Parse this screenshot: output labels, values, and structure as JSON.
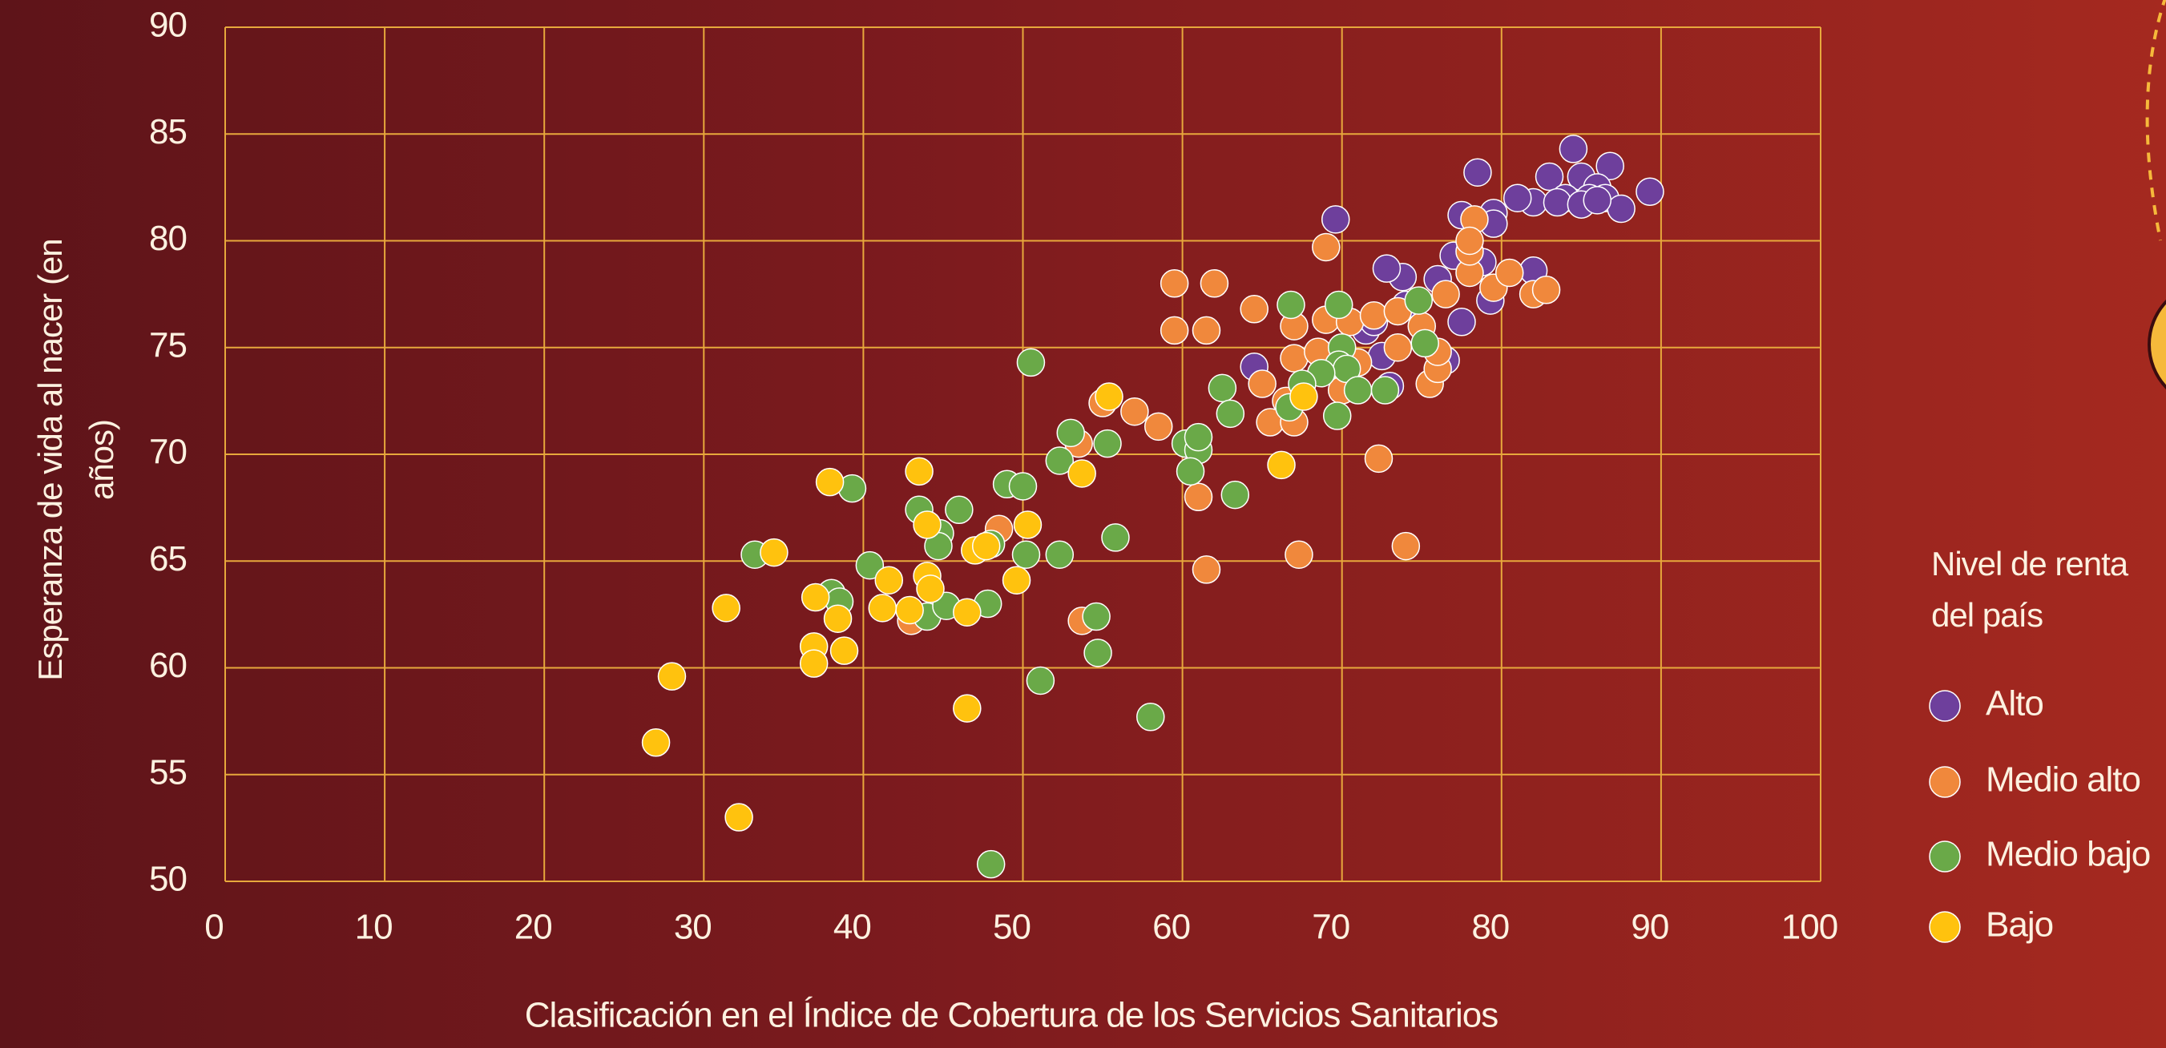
{
  "chart_data": {
    "type": "scatter",
    "x_label": "Clasificación en el Índice de Cobertura de los Servicios Sanitarios",
    "y_label": "Esperanza de vida al nacer (en años)",
    "legend_title": "Nivel de renta del país",
    "legend_position": "right",
    "grid": true,
    "xlim": [
      0,
      100
    ],
    "xticks": [
      0,
      10,
      20,
      30,
      40,
      50,
      60,
      70,
      80,
      90,
      100
    ],
    "ylim": [
      50,
      90
    ],
    "yticks": [
      50,
      55,
      60,
      65,
      70,
      75,
      80,
      85,
      90
    ],
    "series": [
      {
        "name": "Alto",
        "color": "#6e3f9c",
        "x": [
          84.5,
          86.8,
          78.5,
          83,
          85,
          86,
          84,
          82,
          83.5,
          85.5,
          86.5,
          87.5,
          89.3,
          81,
          79.5,
          79.5,
          69.6,
          77.5,
          77,
          78.8,
          76,
          73.8,
          72.8,
          82,
          79.3,
          77.5,
          76.5,
          72.5,
          64.5,
          71.5,
          72,
          73,
          69.5,
          74,
          85,
          86
        ],
        "y": [
          84.3,
          83.5,
          83.2,
          83,
          83,
          82.5,
          82,
          81.8,
          81.8,
          82,
          82,
          81.5,
          82.3,
          82,
          81.3,
          80.8,
          81,
          81.2,
          79.3,
          79,
          78.2,
          78.3,
          78.7,
          78.6,
          77.2,
          76.2,
          74.4,
          74.6,
          74.1,
          75.8,
          76.2,
          73.2,
          74,
          77,
          81.7,
          81.9
        ]
      },
      {
        "name": "Medio alto",
        "color": "#f0883c",
        "x": [
          59.5,
          62,
          64.5,
          59.5,
          61.5,
          67,
          69,
          70.5,
          72,
          73.5,
          75,
          76.5,
          78,
          78,
          78.3,
          78,
          79.5,
          80.5,
          82,
          82.8,
          69,
          65,
          67,
          68.5,
          70,
          71,
          73.5,
          75.5,
          76,
          76,
          65.5,
          66.5,
          67,
          55,
          57,
          53.5,
          58.5,
          61,
          72.3,
          74,
          67.3,
          61.5,
          48.5,
          53.7,
          43
        ],
        "y": [
          78,
          78,
          76.8,
          75.8,
          75.8,
          76,
          76.3,
          76.2,
          76.5,
          76.7,
          76,
          77.5,
          78.5,
          79.5,
          81,
          80,
          77.8,
          78.5,
          77.5,
          77.7,
          79.7,
          73.3,
          74.5,
          74.8,
          73,
          74.3,
          75,
          73.3,
          74,
          74.8,
          71.5,
          72.5,
          71.5,
          72.4,
          72,
          70.5,
          71.3,
          68,
          69.8,
          65.7,
          65.3,
          64.6,
          66.5,
          62.2,
          62.2
        ]
      },
      {
        "name": "Medio bajo",
        "color": "#6aa948",
        "x": [
          50.5,
          66.8,
          69.8,
          74.8,
          75.2,
          70,
          69.8,
          70.3,
          68.7,
          67.5,
          71,
          72.7,
          62.5,
          63,
          66.7,
          69.7,
          53,
          52.3,
          55.3,
          60.2,
          61,
          61,
          60.5,
          63.3,
          49,
          50,
          39.3,
          43.5,
          46,
          44.8,
          44.7,
          48,
          55.8,
          40.4,
          33.2,
          50.2,
          52.3,
          38,
          38.5,
          44,
          45.2,
          47.8,
          54.6,
          54.7,
          51.1,
          58,
          48
        ],
        "y": [
          74.3,
          77,
          77,
          77.2,
          75.2,
          75,
          74.2,
          74,
          73.8,
          73.3,
          73,
          73,
          73.1,
          71.9,
          72.2,
          71.8,
          71,
          69.7,
          70.5,
          70.5,
          70.2,
          70.8,
          69.2,
          68.1,
          68.6,
          68.5,
          68.4,
          67.4,
          67.4,
          66.3,
          65.7,
          65.8,
          66.1,
          64.8,
          65.3,
          65.3,
          65.3,
          63.5,
          63.1,
          62.4,
          62.9,
          63,
          62.4,
          60.7,
          59.4,
          57.7,
          50.8
        ]
      },
      {
        "name": "Bajo",
        "color": "#ffc20e",
        "x": [
          55.4,
          67.6,
          43.5,
          53.7,
          66.2,
          37.9,
          44,
          50.3,
          47,
          47.7,
          34.4,
          41.6,
          44,
          49.6,
          44.2,
          37,
          41.2,
          42.9,
          46.5,
          31.4,
          38.4,
          36.9,
          38.8,
          36.9,
          28,
          46.5,
          27,
          32.2
        ],
        "y": [
          72.7,
          72.7,
          69.2,
          69.1,
          69.5,
          68.7,
          66.7,
          66.7,
          65.5,
          65.7,
          65.4,
          64.1,
          64.3,
          64.1,
          63.7,
          63.3,
          62.8,
          62.7,
          62.6,
          62.8,
          62.3,
          61,
          60.8,
          60.2,
          59.6,
          58.1,
          56.5,
          53
        ]
      }
    ]
  }
}
